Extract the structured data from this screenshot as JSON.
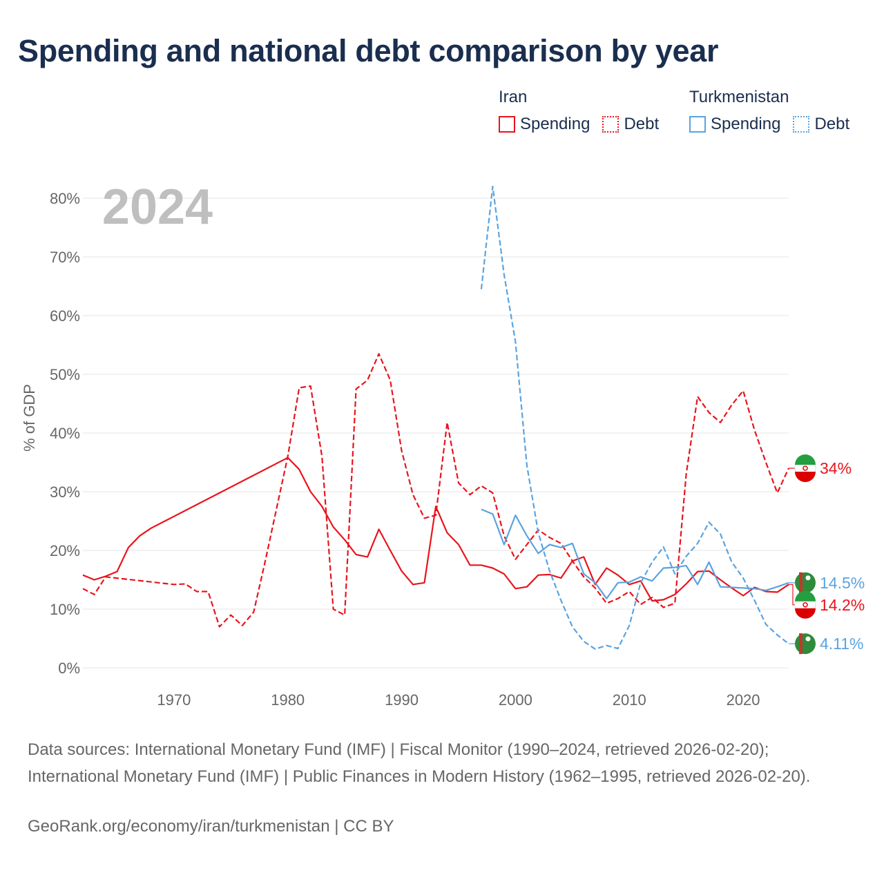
{
  "title": "Spending and national debt comparison by year",
  "legend": {
    "groups": [
      {
        "country": "Iran",
        "spending_label": "Spending",
        "debt_label": "Debt",
        "color": "#e8141c"
      },
      {
        "country": "Turkmenistan",
        "spending_label": "Spending",
        "debt_label": "Debt",
        "color": "#5aa3e0"
      }
    ]
  },
  "footer": {
    "sources": "Data sources: International Monetary Fund (IMF) | Fiscal Monitor (1990–2024, retrieved 2026-02-20); International Monetary Fund (IMF) | Public Finances in Modern History (1962–1995, retrieved 2026-02-20).",
    "credit": "GeoRank.org/economy/iran/turkmenistan | CC BY"
  },
  "chart_data": {
    "type": "line",
    "year_label": "2024",
    "ylabel": "% of GDP",
    "xlabel": "",
    "xlim": [
      1962,
      2024
    ],
    "ylim": [
      0,
      80
    ],
    "x_ticks": [
      1970,
      1980,
      1990,
      2000,
      2010,
      2020
    ],
    "y_ticks": [
      0,
      10,
      20,
      30,
      40,
      50,
      60,
      70,
      80
    ],
    "y_tick_labels": [
      "0%",
      "10%",
      "20%",
      "30%",
      "40%",
      "50%",
      "60%",
      "70%",
      "80%"
    ],
    "grid": true,
    "series": [
      {
        "name": "Iran Debt",
        "country": "Iran",
        "metric": "Debt",
        "color": "#e8141c",
        "dash": true,
        "end_label": "34%",
        "points": [
          [
            1962,
            13.5
          ],
          [
            1963,
            12.5
          ],
          [
            1964,
            15.5
          ],
          [
            1970,
            14.2
          ],
          [
            1971,
            14.3
          ],
          [
            1972,
            13
          ],
          [
            1973,
            13
          ],
          [
            1974,
            7
          ],
          [
            1975,
            9
          ],
          [
            1976,
            7.2
          ],
          [
            1977,
            9.5
          ],
          [
            1978,
            18
          ],
          [
            1979,
            27
          ],
          [
            1980,
            36
          ],
          [
            1981,
            47.7
          ],
          [
            1982,
            48
          ],
          [
            1983,
            36
          ],
          [
            1984,
            10
          ],
          [
            1985,
            9
          ],
          [
            1986,
            47.5
          ],
          [
            1987,
            49
          ],
          [
            1988,
            53.5
          ],
          [
            1989,
            49
          ],
          [
            1990,
            37
          ],
          [
            1991,
            29.5
          ],
          [
            1992,
            25.5
          ],
          [
            1993,
            26
          ],
          [
            1994,
            41.8
          ],
          [
            1995,
            31.5
          ],
          [
            1996,
            29.5
          ],
          [
            1997,
            31
          ],
          [
            1998,
            29.8
          ],
          [
            1999,
            22.5
          ],
          [
            2000,
            18.5
          ],
          [
            2001,
            21
          ],
          [
            2002,
            23.5
          ],
          [
            2003,
            22.2
          ],
          [
            2004,
            21.2
          ],
          [
            2005,
            18.2
          ],
          [
            2006,
            15.5
          ],
          [
            2007,
            13.6
          ],
          [
            2008,
            11
          ],
          [
            2009,
            11.8
          ],
          [
            2010,
            13
          ],
          [
            2011,
            10.8
          ],
          [
            2012,
            12
          ],
          [
            2013,
            10.3
          ],
          [
            2014,
            11
          ],
          [
            2015,
            33
          ],
          [
            2016,
            46.2
          ],
          [
            2017,
            43.5
          ],
          [
            2018,
            41.8
          ],
          [
            2019,
            44.8
          ],
          [
            2020,
            47.2
          ],
          [
            2021,
            40.5
          ],
          [
            2022,
            35
          ],
          [
            2023,
            29.8
          ],
          [
            2024,
            34
          ]
        ]
      },
      {
        "name": "Iran Spending",
        "country": "Iran",
        "metric": "Spending",
        "color": "#e8141c",
        "dash": false,
        "end_label": "14.2%",
        "points": [
          [
            1962,
            15.8
          ],
          [
            1963,
            15
          ],
          [
            1964,
            15.6
          ],
          [
            1965,
            16.4
          ],
          [
            1966,
            20.5
          ],
          [
            1967,
            22.5
          ],
          [
            1968,
            23.8
          ],
          [
            1980,
            35.8
          ],
          [
            1981,
            33.8
          ],
          [
            1982,
            30
          ],
          [
            1983,
            27.5
          ],
          [
            1984,
            24
          ],
          [
            1985,
            21.8
          ],
          [
            1986,
            19.3
          ],
          [
            1987,
            18.9
          ],
          [
            1988,
            23.6
          ],
          [
            1989,
            20
          ],
          [
            1990,
            16.5
          ],
          [
            1991,
            14.2
          ],
          [
            1992,
            14.5
          ],
          [
            1993,
            27.5
          ],
          [
            1994,
            23
          ],
          [
            1995,
            21
          ],
          [
            1996,
            17.5
          ],
          [
            1997,
            17.5
          ],
          [
            1998,
            17
          ],
          [
            1999,
            16
          ],
          [
            2000,
            13.5
          ],
          [
            2001,
            13.8
          ],
          [
            2002,
            15.8
          ],
          [
            2003,
            15.9
          ],
          [
            2004,
            15.3
          ],
          [
            2005,
            18.2
          ],
          [
            2006,
            18.9
          ],
          [
            2007,
            14.2
          ],
          [
            2008,
            17
          ],
          [
            2009,
            15.8
          ],
          [
            2010,
            14.2
          ],
          [
            2011,
            14.8
          ],
          [
            2012,
            11.4
          ],
          [
            2013,
            11.6
          ],
          [
            2014,
            12.5
          ],
          [
            2015,
            14.3
          ],
          [
            2016,
            16.4
          ],
          [
            2017,
            16.5
          ],
          [
            2018,
            15
          ],
          [
            2019,
            13.6
          ],
          [
            2020,
            12.3
          ],
          [
            2021,
            13.7
          ],
          [
            2022,
            13
          ],
          [
            2023,
            12.9
          ],
          [
            2024,
            14.2
          ]
        ]
      },
      {
        "name": "Turkmenistan Debt",
        "country": "Turkmenistan",
        "metric": "Debt",
        "color": "#5aa3e0",
        "dash": true,
        "end_label": "4.11%",
        "points": [
          [
            1997,
            64.5
          ],
          [
            1998,
            82
          ],
          [
            1999,
            67
          ],
          [
            2000,
            55.5
          ],
          [
            2001,
            34.5
          ],
          [
            2002,
            23
          ],
          [
            2003,
            16.5
          ],
          [
            2004,
            11.5
          ],
          [
            2005,
            7
          ],
          [
            2006,
            4.5
          ],
          [
            2007,
            3.2
          ],
          [
            2008,
            3.8
          ],
          [
            2009,
            3.3
          ],
          [
            2010,
            7.2
          ],
          [
            2011,
            14.5
          ],
          [
            2012,
            18
          ],
          [
            2013,
            20.6
          ],
          [
            2014,
            16
          ],
          [
            2015,
            19
          ],
          [
            2016,
            21.2
          ],
          [
            2017,
            24.8
          ],
          [
            2018,
            22.8
          ],
          [
            2019,
            18
          ],
          [
            2020,
            15.3
          ],
          [
            2021,
            11.5
          ],
          [
            2022,
            7.4
          ],
          [
            2023,
            5.6
          ],
          [
            2024,
            4.11
          ]
        ]
      },
      {
        "name": "Turkmenistan Spending",
        "country": "Turkmenistan",
        "metric": "Spending",
        "color": "#5aa3e0",
        "dash": false,
        "end_label": "14.5%",
        "points": [
          [
            1997,
            27
          ],
          [
            1998,
            26.2
          ],
          [
            1999,
            21
          ],
          [
            2000,
            26
          ],
          [
            2001,
            22.5
          ],
          [
            2002,
            19.5
          ],
          [
            2003,
            21
          ],
          [
            2004,
            20.5
          ],
          [
            2005,
            21.2
          ],
          [
            2006,
            16
          ],
          [
            2007,
            14.5
          ],
          [
            2008,
            11.8
          ],
          [
            2009,
            14.5
          ],
          [
            2010,
            14.6
          ],
          [
            2011,
            15.5
          ],
          [
            2012,
            14.8
          ],
          [
            2013,
            17
          ],
          [
            2014,
            17.1
          ],
          [
            2015,
            17.4
          ],
          [
            2016,
            14.2
          ],
          [
            2017,
            18
          ],
          [
            2018,
            13.8
          ],
          [
            2019,
            13.7
          ],
          [
            2020,
            13.6
          ],
          [
            2021,
            13.5
          ],
          [
            2022,
            13.2
          ],
          [
            2023,
            13.8
          ],
          [
            2024,
            14.5
          ]
        ]
      }
    ]
  }
}
